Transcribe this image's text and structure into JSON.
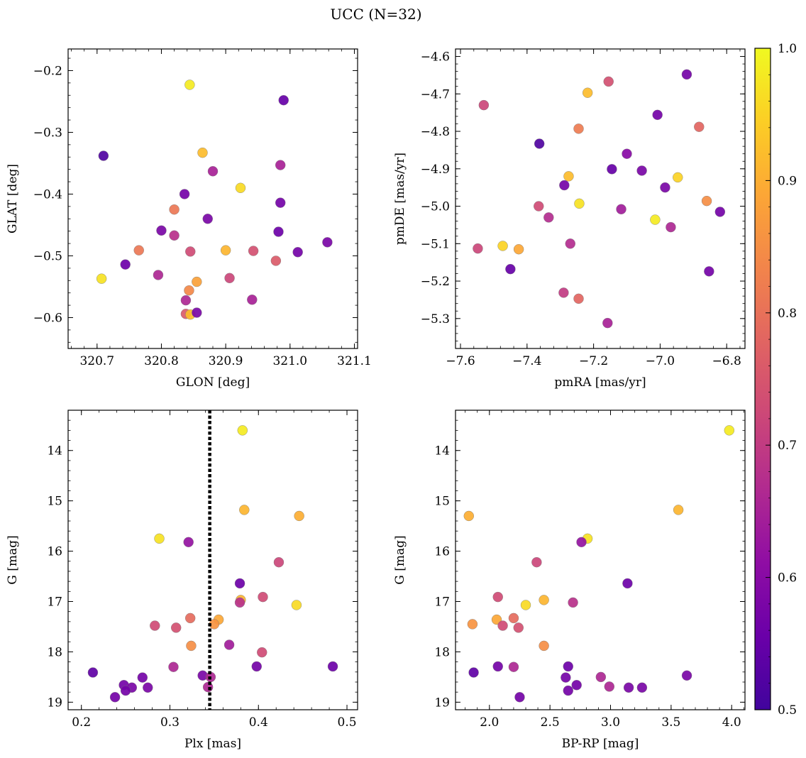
{
  "figure": {
    "suptitle": "UCC (N=32)"
  },
  "colorbar": {
    "vmin": 0.5,
    "vmax": 1.0,
    "ticks": [
      "0.5",
      "0.6",
      "0.7",
      "0.8",
      "0.9",
      "1.0"
    ],
    "cmap": "plasma",
    "stops": [
      "#41049d",
      "#6a00a8",
      "#8f0da4",
      "#b12a90",
      "#cc4778",
      "#e16462",
      "#f2844b",
      "#fca636",
      "#fcce25",
      "#f0f921"
    ]
  },
  "chart_data": [
    {
      "id": "glon_glat",
      "type": "scatter",
      "xlabel": "GLON [deg]",
      "ylabel": "GLAT [deg]",
      "xlim": [
        320.655,
        321.105
      ],
      "ylim": [
        -0.65,
        -0.165
      ],
      "y_inverted": false,
      "xticks": [
        "320.7",
        "320.8",
        "320.9",
        "321.0",
        "321.1"
      ],
      "xtick_values": [
        320.7,
        320.8,
        320.9,
        321.0,
        321.1
      ],
      "yticks": [
        "−0.6",
        "−0.5",
        "−0.4",
        "−0.3",
        "−0.2"
      ],
      "ytick_values": [
        -0.6,
        -0.5,
        -0.4,
        -0.3,
        -0.2
      ],
      "points": [
        {
          "x": 320.844,
          "y": -0.223,
          "c": 0.98
        },
        {
          "x": 320.99,
          "y": -0.248,
          "c": 0.55
        },
        {
          "x": 320.71,
          "y": -0.338,
          "c": 0.52
        },
        {
          "x": 320.864,
          "y": -0.333,
          "c": 0.92
        },
        {
          "x": 320.88,
          "y": -0.363,
          "c": 0.65
        },
        {
          "x": 320.985,
          "y": -0.353,
          "c": 0.65
        },
        {
          "x": 320.923,
          "y": -0.39,
          "c": 0.96
        },
        {
          "x": 320.836,
          "y": -0.4,
          "c": 0.57
        },
        {
          "x": 320.985,
          "y": -0.414,
          "c": 0.57
        },
        {
          "x": 320.82,
          "y": -0.425,
          "c": 0.81
        },
        {
          "x": 320.872,
          "y": -0.44,
          "c": 0.58
        },
        {
          "x": 320.8,
          "y": -0.459,
          "c": 0.58
        },
        {
          "x": 320.82,
          "y": -0.467,
          "c": 0.68
        },
        {
          "x": 320.982,
          "y": -0.461,
          "c": 0.56
        },
        {
          "x": 320.765,
          "y": -0.491,
          "c": 0.81
        },
        {
          "x": 320.845,
          "y": -0.493,
          "c": 0.73
        },
        {
          "x": 320.9,
          "y": -0.491,
          "c": 0.91
        },
        {
          "x": 320.943,
          "y": -0.492,
          "c": 0.74
        },
        {
          "x": 321.012,
          "y": -0.494,
          "c": 0.57
        },
        {
          "x": 321.058,
          "y": -0.478,
          "c": 0.58
        },
        {
          "x": 320.978,
          "y": -0.508,
          "c": 0.76
        },
        {
          "x": 320.744,
          "y": -0.514,
          "c": 0.56
        },
        {
          "x": 320.707,
          "y": -0.537,
          "c": 0.97
        },
        {
          "x": 320.795,
          "y": -0.531,
          "c": 0.66
        },
        {
          "x": 320.906,
          "y": -0.536,
          "c": 0.72
        },
        {
          "x": 320.855,
          "y": -0.542,
          "c": 0.88
        },
        {
          "x": 320.843,
          "y": -0.556,
          "c": 0.84
        },
        {
          "x": 320.838,
          "y": -0.572,
          "c": 0.66
        },
        {
          "x": 320.941,
          "y": -0.571,
          "c": 0.65
        },
        {
          "x": 320.838,
          "y": -0.594,
          "c": 0.76
        },
        {
          "x": 320.845,
          "y": -0.595,
          "c": 0.92
        },
        {
          "x": 320.855,
          "y": -0.592,
          "c": 0.58
        }
      ]
    },
    {
      "id": "pmra_pmde",
      "type": "scatter",
      "xlabel": "pmRA [mas/yr]",
      "ylabel": "pmDE [mas/yr]",
      "xlim": [
        -7.615,
        -6.745
      ],
      "ylim": [
        -5.38,
        -4.58
      ],
      "y_inverted": false,
      "xticks": [
        "−7.6",
        "−7.4",
        "−7.2",
        "−7.0",
        "−6.8"
      ],
      "xtick_values": [
        -7.6,
        -7.4,
        -7.2,
        -7.0,
        -6.8
      ],
      "yticks": [
        "−5.3",
        "−5.2",
        "−5.1",
        "−5.0",
        "−4.9",
        "−4.8",
        "−4.7",
        "−4.6"
      ],
      "ytick_values": [
        -5.3,
        -5.2,
        -5.1,
        -5.0,
        -4.9,
        -4.8,
        -4.7,
        -4.6
      ],
      "points": [
        {
          "x": -6.92,
          "y": -4.648,
          "c": 0.57
        },
        {
          "x": -7.155,
          "y": -4.667,
          "c": 0.74
        },
        {
          "x": -7.218,
          "y": -4.697,
          "c": 0.92
        },
        {
          "x": -7.53,
          "y": -4.73,
          "c": 0.72
        },
        {
          "x": -7.008,
          "y": -4.756,
          "c": 0.57
        },
        {
          "x": -7.245,
          "y": -4.793,
          "c": 0.82
        },
        {
          "x": -6.883,
          "y": -4.788,
          "c": 0.78
        },
        {
          "x": -7.363,
          "y": -4.833,
          "c": 0.52
        },
        {
          "x": -7.1,
          "y": -4.86,
          "c": 0.6
        },
        {
          "x": -7.145,
          "y": -4.901,
          "c": 0.55
        },
        {
          "x": -7.055,
          "y": -4.905,
          "c": 0.58
        },
        {
          "x": -7.275,
          "y": -4.92,
          "c": 0.92
        },
        {
          "x": -6.947,
          "y": -4.923,
          "c": 0.95
        },
        {
          "x": -7.288,
          "y": -4.944,
          "c": 0.57
        },
        {
          "x": -6.985,
          "y": -4.95,
          "c": 0.58
        },
        {
          "x": -7.243,
          "y": -4.993,
          "c": 0.97
        },
        {
          "x": -6.86,
          "y": -4.986,
          "c": 0.85
        },
        {
          "x": -7.365,
          "y": -5.0,
          "c": 0.73
        },
        {
          "x": -7.117,
          "y": -5.008,
          "c": 0.64
        },
        {
          "x": -6.82,
          "y": -5.015,
          "c": 0.57
        },
        {
          "x": -7.335,
          "y": -5.03,
          "c": 0.67
        },
        {
          "x": -7.015,
          "y": -5.036,
          "c": 0.98
        },
        {
          "x": -6.968,
          "y": -5.056,
          "c": 0.66
        },
        {
          "x": -7.27,
          "y": -5.1,
          "c": 0.67
        },
        {
          "x": -7.473,
          "y": -5.106,
          "c": 0.95
        },
        {
          "x": -7.425,
          "y": -5.115,
          "c": 0.89
        },
        {
          "x": -7.548,
          "y": -5.113,
          "c": 0.72
        },
        {
          "x": -7.45,
          "y": -5.168,
          "c": 0.55
        },
        {
          "x": -6.853,
          "y": -5.174,
          "c": 0.57
        },
        {
          "x": -7.29,
          "y": -5.231,
          "c": 0.7
        },
        {
          "x": -7.245,
          "y": -5.247,
          "c": 0.78
        },
        {
          "x": -7.158,
          "y": -5.312,
          "c": 0.65
        }
      ]
    },
    {
      "id": "plx_g",
      "type": "scatter",
      "xlabel": "Plx [mas]",
      "ylabel": "G [mag]",
      "xlim": [
        0.185,
        0.512
      ],
      "ylim": [
        19.15,
        13.2
      ],
      "y_inverted": true,
      "vline": 0.345,
      "xticks": [
        "0.2",
        "0.3",
        "0.4",
        "0.5"
      ],
      "xtick_values": [
        0.2,
        0.3,
        0.4,
        0.5
      ],
      "yticks": [
        "14",
        "15",
        "16",
        "17",
        "18",
        "19"
      ],
      "ytick_values": [
        14,
        15,
        16,
        17,
        18,
        19
      ],
      "points": [
        {
          "x": 0.382,
          "y": 13.6,
          "c": 0.98
        },
        {
          "x": 0.384,
          "y": 15.18,
          "c": 0.91
        },
        {
          "x": 0.446,
          "y": 15.3,
          "c": 0.9
        },
        {
          "x": 0.288,
          "y": 15.75,
          "c": 0.97
        },
        {
          "x": 0.321,
          "y": 15.82,
          "c": 0.62
        },
        {
          "x": 0.423,
          "y": 16.22,
          "c": 0.72
        },
        {
          "x": 0.379,
          "y": 16.64,
          "c": 0.56
        },
        {
          "x": 0.405,
          "y": 16.91,
          "c": 0.73
        },
        {
          "x": 0.38,
          "y": 16.97,
          "c": 0.91
        },
        {
          "x": 0.379,
          "y": 17.02,
          "c": 0.68
        },
        {
          "x": 0.443,
          "y": 17.07,
          "c": 0.96
        },
        {
          "x": 0.323,
          "y": 17.33,
          "c": 0.79
        },
        {
          "x": 0.355,
          "y": 17.36,
          "c": 0.89
        },
        {
          "x": 0.35,
          "y": 17.45,
          "c": 0.86
        },
        {
          "x": 0.283,
          "y": 17.48,
          "c": 0.73
        },
        {
          "x": 0.307,
          "y": 17.52,
          "c": 0.74
        },
        {
          "x": 0.367,
          "y": 17.86,
          "c": 0.64
        },
        {
          "x": 0.324,
          "y": 17.88,
          "c": 0.85
        },
        {
          "x": 0.404,
          "y": 18.01,
          "c": 0.73
        },
        {
          "x": 0.304,
          "y": 18.3,
          "c": 0.66
        },
        {
          "x": 0.398,
          "y": 18.29,
          "c": 0.57
        },
        {
          "x": 0.484,
          "y": 18.29,
          "c": 0.56
        },
        {
          "x": 0.213,
          "y": 18.41,
          "c": 0.54
        },
        {
          "x": 0.337,
          "y": 18.47,
          "c": 0.58
        },
        {
          "x": 0.346,
          "y": 18.5,
          "c": 0.66
        },
        {
          "x": 0.269,
          "y": 18.51,
          "c": 0.57
        },
        {
          "x": 0.248,
          "y": 18.66,
          "c": 0.57
        },
        {
          "x": 0.257,
          "y": 18.71,
          "c": 0.58
        },
        {
          "x": 0.275,
          "y": 18.71,
          "c": 0.58
        },
        {
          "x": 0.343,
          "y": 18.7,
          "c": 0.66
        },
        {
          "x": 0.25,
          "y": 18.77,
          "c": 0.57
        },
        {
          "x": 0.238,
          "y": 18.9,
          "c": 0.57
        }
      ]
    },
    {
      "id": "bprp_g",
      "type": "scatter",
      "xlabel": "BP-RP [mag]",
      "ylabel": "G [mag]",
      "xlim": [
        1.72,
        4.11
      ],
      "ylim": [
        19.15,
        13.2
      ],
      "y_inverted": true,
      "xticks": [
        "2.0",
        "2.5",
        "3.0",
        "3.5",
        "4.0"
      ],
      "xtick_values": [
        2.0,
        2.5,
        3.0,
        3.5,
        4.0
      ],
      "yticks": [
        "14",
        "15",
        "16",
        "17",
        "18",
        "19"
      ],
      "ytick_values": [
        14,
        15,
        16,
        17,
        18,
        19
      ],
      "points": [
        {
          "x": 3.98,
          "y": 13.6,
          "c": 0.98
        },
        {
          "x": 3.56,
          "y": 15.18,
          "c": 0.91
        },
        {
          "x": 1.83,
          "y": 15.3,
          "c": 0.9
        },
        {
          "x": 2.81,
          "y": 15.75,
          "c": 0.97
        },
        {
          "x": 2.76,
          "y": 15.82,
          "c": 0.62
        },
        {
          "x": 2.39,
          "y": 16.22,
          "c": 0.72
        },
        {
          "x": 3.14,
          "y": 16.64,
          "c": 0.56
        },
        {
          "x": 2.07,
          "y": 16.91,
          "c": 0.73
        },
        {
          "x": 2.45,
          "y": 16.97,
          "c": 0.91
        },
        {
          "x": 2.69,
          "y": 17.02,
          "c": 0.68
        },
        {
          "x": 2.3,
          "y": 17.07,
          "c": 0.96
        },
        {
          "x": 2.2,
          "y": 17.33,
          "c": 0.79
        },
        {
          "x": 2.06,
          "y": 17.36,
          "c": 0.89
        },
        {
          "x": 1.86,
          "y": 17.45,
          "c": 0.86
        },
        {
          "x": 2.11,
          "y": 17.48,
          "c": 0.73
        },
        {
          "x": 2.24,
          "y": 17.52,
          "c": 0.74
        },
        {
          "x": 2.45,
          "y": 17.88,
          "c": 0.85
        },
        {
          "x": 2.07,
          "y": 18.29,
          "c": 0.57
        },
        {
          "x": 2.65,
          "y": 18.29,
          "c": 0.56
        },
        {
          "x": 2.2,
          "y": 18.3,
          "c": 0.66
        },
        {
          "x": 1.87,
          "y": 18.41,
          "c": 0.54
        },
        {
          "x": 3.63,
          "y": 18.47,
          "c": 0.58
        },
        {
          "x": 2.92,
          "y": 18.5,
          "c": 0.66
        },
        {
          "x": 2.63,
          "y": 18.51,
          "c": 0.57
        },
        {
          "x": 2.72,
          "y": 18.66,
          "c": 0.57
        },
        {
          "x": 2.99,
          "y": 18.69,
          "c": 0.66
        },
        {
          "x": 3.15,
          "y": 18.71,
          "c": 0.58
        },
        {
          "x": 3.26,
          "y": 18.71,
          "c": 0.58
        },
        {
          "x": 2.65,
          "y": 18.77,
          "c": 0.57
        },
        {
          "x": 2.25,
          "y": 18.9,
          "c": 0.57
        }
      ]
    }
  ]
}
